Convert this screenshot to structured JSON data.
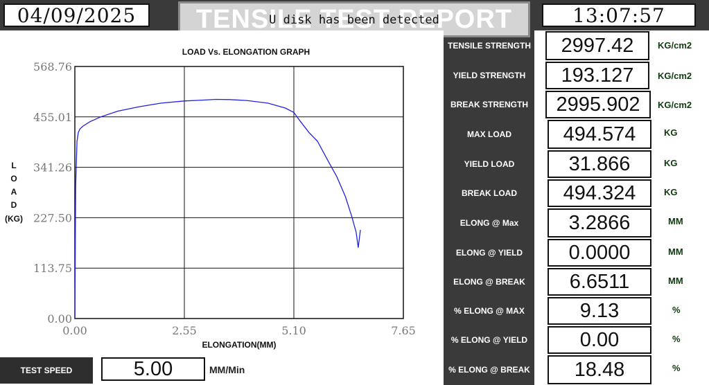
{
  "header": {
    "date": "04/09/2025",
    "time": "13:07:57",
    "title": "TENSILE TEST REPORT",
    "status": "U disk has been detected"
  },
  "results": [
    {
      "label": "TENSILE STRENGTH",
      "value": "2997.42",
      "unit": "KG/cm2"
    },
    {
      "label": "YIELD STRENGTH",
      "value": "193.127",
      "unit": "KG/cm2"
    },
    {
      "label": "BREAK STRENGTH",
      "value": "2995.902",
      "unit": "KG/cm2"
    },
    {
      "label": "MAX LOAD",
      "value": "494.574",
      "unit": "KG"
    },
    {
      "label": "YIELD LOAD",
      "value": "31.866",
      "unit": "KG"
    },
    {
      "label": "BREAK LOAD",
      "value": "494.324",
      "unit": "KG"
    },
    {
      "label": "ELONG @ Max",
      "value": "3.2866",
      "unit": "MM"
    },
    {
      "label": "ELONG @ YIELD",
      "value": "0.0000",
      "unit": "MM"
    },
    {
      "label": "ELONG @ BREAK",
      "value": "6.6511",
      "unit": "MM"
    },
    {
      "label": "% ELONG @ MAX",
      "value": "9.13",
      "unit": "%"
    },
    {
      "label": "% ELONG @ YIELD",
      "value": "0.00",
      "unit": "%"
    },
    {
      "label": "% ELONG @ BREAK",
      "value": "18.48",
      "unit": "%"
    }
  ],
  "test_speed": {
    "label": "TEST SPEED",
    "value": "5.00",
    "unit": "MM/Min"
  },
  "chart_data": {
    "type": "line",
    "title": "LOAD Vs. ELONGATION GRAPH",
    "xlabel": "ELONGATION(MM)",
    "ylabel_letters": [
      "L",
      "O",
      "A",
      "D"
    ],
    "ylabel_unit": "(KG)",
    "xlim": [
      0,
      7.65
    ],
    "ylim": [
      0,
      568.76
    ],
    "x_ticks": [
      "0.00",
      "2.55",
      "5.10",
      "7.65"
    ],
    "y_ticks": [
      "0.00",
      "113.75",
      "227.50",
      "341.26",
      "455.01",
      "568.76"
    ],
    "grid": true,
    "line_color": "#2020e0",
    "series": [
      {
        "x": [
          0.0,
          0.02,
          0.05,
          0.08,
          0.12,
          0.2,
          0.35,
          0.6,
          1.0,
          1.5,
          2.0,
          2.55,
          3.0,
          3.29,
          3.6,
          4.0,
          4.5,
          4.9,
          5.1,
          5.25,
          5.45,
          5.65,
          5.9,
          6.1,
          6.3,
          6.45,
          6.55,
          6.6,
          6.65
        ],
        "y": [
          0,
          300,
          400,
          420,
          428,
          435,
          444,
          455,
          468,
          478,
          486,
          491,
          493,
          494.5,
          494,
          492,
          486,
          475,
          465,
          445,
          420,
          400,
          355,
          320,
          275,
          230,
          195,
          160,
          200
        ]
      }
    ]
  }
}
